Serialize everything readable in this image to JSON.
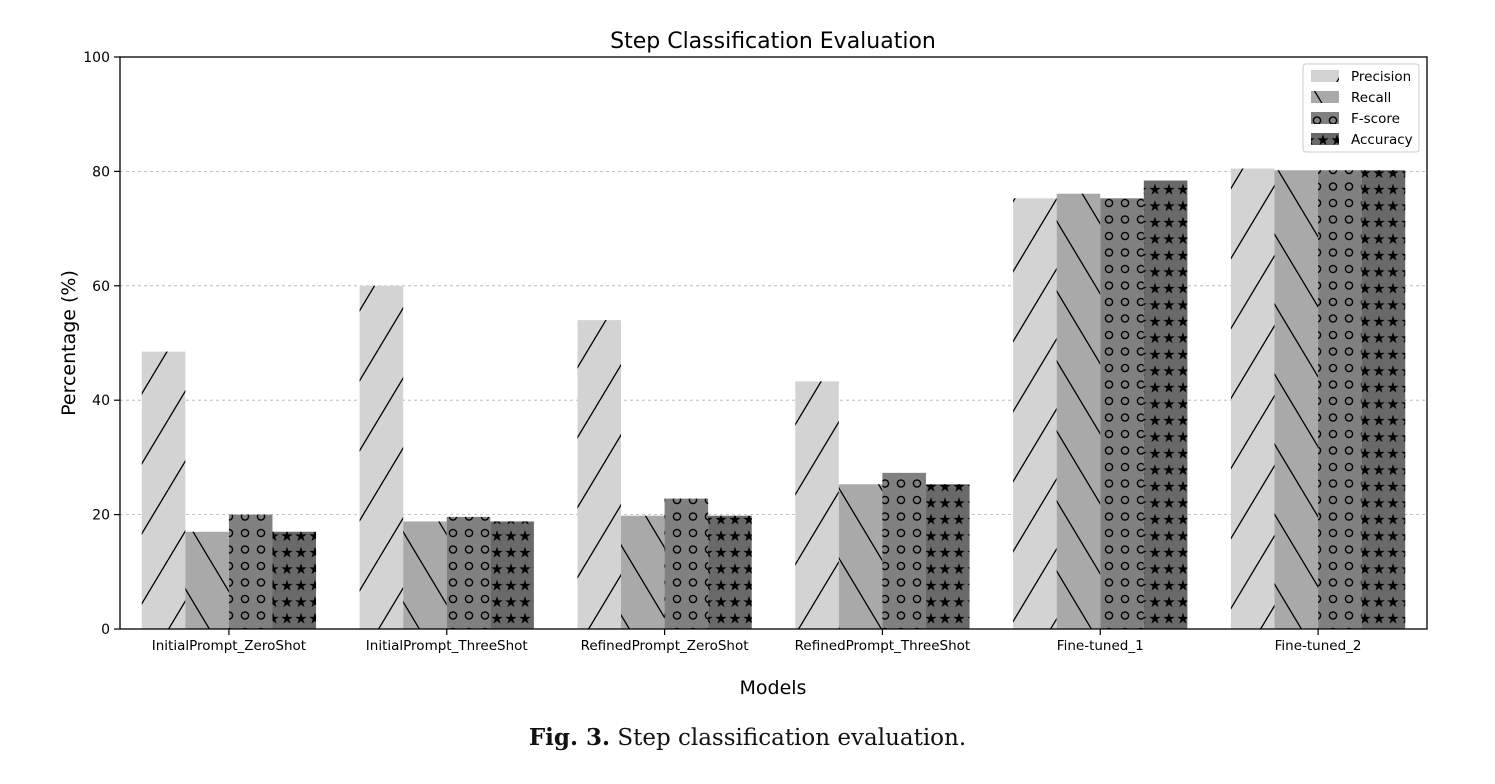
{
  "chart_data": {
    "type": "bar",
    "title": "Step Classification Evaluation",
    "xlabel": "Models",
    "ylabel": "Percentage (%)",
    "ylim": [
      0,
      100
    ],
    "yticks": [
      "0",
      "20",
      "40",
      "60",
      "80",
      "100"
    ],
    "grid": "horizontal dashed",
    "legend_position": "top-right",
    "categories": [
      "InitialPrompt_ZeroShot",
      "InitialPrompt_ThreeShot",
      "RefinedPrompt_ZeroShot",
      "RefinedPrompt_ThreeShot",
      "Fine-tuned_1",
      "Fine-tuned_2"
    ],
    "series": [
      {
        "name": "Precision",
        "values": [
          48.5,
          60.0,
          54.0,
          43.3,
          75.3,
          80.5
        ],
        "color": "#d3d3d3",
        "hatch": "forward-slash"
      },
      {
        "name": "Recall",
        "values": [
          17.0,
          18.8,
          19.8,
          25.3,
          76.1,
          80.2
        ],
        "color": "#a9a9a9",
        "hatch": "back-slash"
      },
      {
        "name": "F-score",
        "values": [
          20.0,
          19.6,
          22.8,
          27.3,
          75.3,
          80.2
        ],
        "color": "#808080",
        "hatch": "circles"
      },
      {
        "name": "Accuracy",
        "values": [
          17.0,
          18.8,
          19.8,
          25.3,
          78.4,
          80.2
        ],
        "color": "#696969",
        "hatch": "stars"
      }
    ]
  },
  "caption": {
    "label": "Fig. 3.",
    "text": "Step classification evaluation."
  }
}
